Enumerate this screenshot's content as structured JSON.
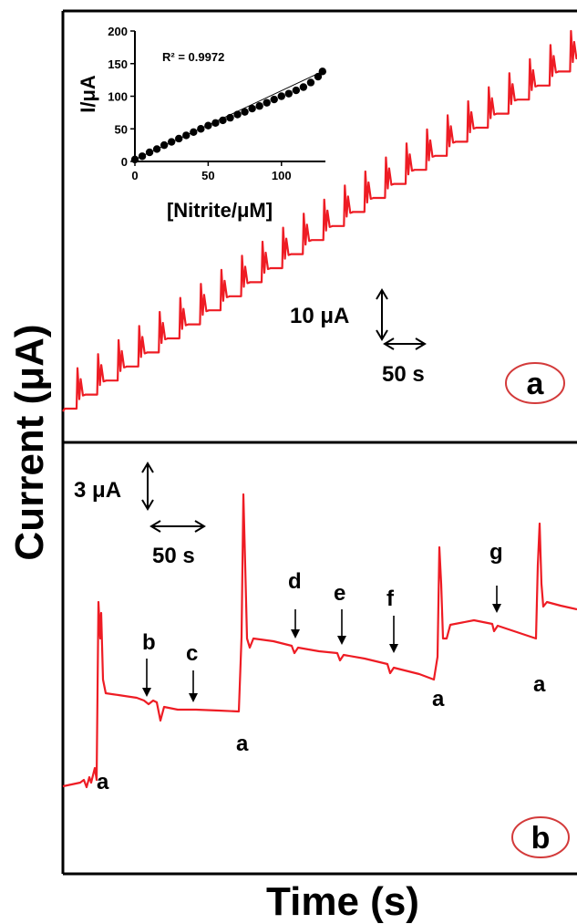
{
  "figure": {
    "ylabel": "Current (μA)",
    "xlabel": "Time (s)"
  },
  "colors": {
    "trace": "#ee1c24",
    "axis": "#000000",
    "circle": "#d33a3a"
  },
  "chart_data": [
    {
      "panel": "a",
      "type": "line",
      "title": "",
      "xlabel": "Time (s)",
      "ylabel": "Current (μA)",
      "scalebar_y": "10 μA",
      "scalebar_x": "50 s",
      "panel_label": "a",
      "steps": 25,
      "grid": false,
      "inset": {
        "type": "scatter",
        "xlabel": "[Nitrite/μM]",
        "ylabel": "I/μA",
        "xlim": [
          0,
          130
        ],
        "ylim": [
          0,
          200
        ],
        "xticks": [
          0,
          50,
          100
        ],
        "yticks": [
          0,
          50,
          100,
          150,
          200
        ],
        "annotation": "R² = 0.9972",
        "x": [
          0,
          5,
          10,
          15,
          20,
          25,
          30,
          35,
          40,
          45,
          50,
          55,
          60,
          65,
          70,
          75,
          80,
          85,
          90,
          95,
          100,
          105,
          110,
          115,
          120,
          125,
          128
        ],
        "y": [
          3,
          8,
          14,
          19,
          25,
          30,
          35,
          40,
          45,
          50,
          55,
          59,
          63,
          67,
          72,
          76,
          81,
          85,
          90,
          95,
          100,
          104,
          109,
          114,
          121,
          130,
          138
        ]
      }
    },
    {
      "panel": "b",
      "type": "line",
      "title": "",
      "scalebar_y": "3 μA",
      "scalebar_x": "50 s",
      "panel_label": "b",
      "grid": false,
      "events": [
        {
          "label": "a",
          "kind": "nitrite"
        },
        {
          "label": "b",
          "kind": "interferent"
        },
        {
          "label": "c",
          "kind": "interferent"
        },
        {
          "label": "a",
          "kind": "nitrite"
        },
        {
          "label": "d",
          "kind": "interferent"
        },
        {
          "label": "e",
          "kind": "interferent"
        },
        {
          "label": "f",
          "kind": "interferent"
        },
        {
          "label": "a",
          "kind": "nitrite"
        },
        {
          "label": "g",
          "kind": "interferent"
        },
        {
          "label": "a",
          "kind": "nitrite"
        }
      ]
    }
  ]
}
